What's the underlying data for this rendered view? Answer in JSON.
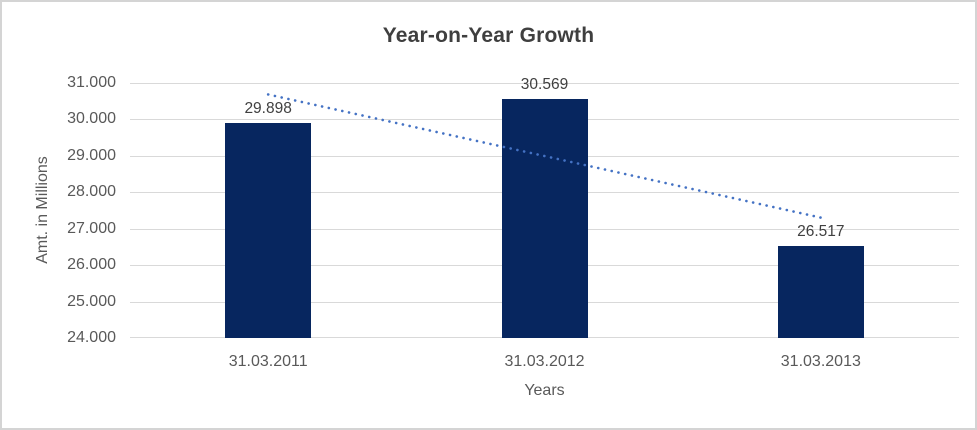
{
  "window": {
    "background": "#FFFFFF",
    "border_color": "#D4D4D4"
  },
  "chart_data": {
    "type": "bar",
    "title": "Year-on-Year Growth",
    "xlabel": "Years",
    "ylabel": "Amt. in Millions",
    "categories": [
      "31.03.2011",
      "31.03.2012",
      "31.03.2013"
    ],
    "values": [
      29.898,
      30.569,
      26.517
    ],
    "data_labels": [
      "29.898",
      "30.569",
      "26.517"
    ],
    "y_ticks": [
      "31.000",
      "30.000",
      "29.000",
      "28.000",
      "27.000",
      "26.000",
      "25.000",
      "24.000"
    ],
    "ylim": [
      24,
      31
    ],
    "grid": true,
    "legend": false,
    "bar_color": "#07265F",
    "gridline_color": "#D9D9D9",
    "title_color": "#3F3F3F",
    "data_label_color": "#404040",
    "axis_text_color": "#595959",
    "trendline": {
      "type": "linear",
      "style": "dotted",
      "color": "#4472C4",
      "endpoint_values": [
        30.686,
        27.304
      ]
    }
  }
}
